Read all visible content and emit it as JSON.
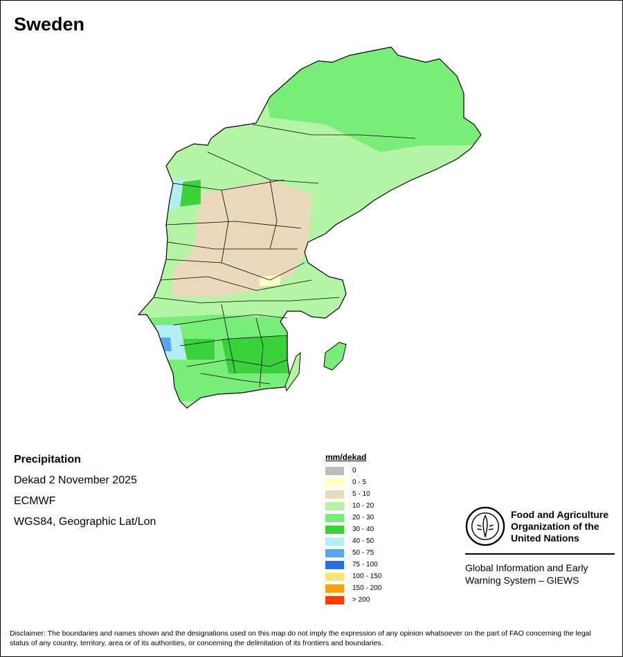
{
  "title": "Sweden",
  "info": {
    "variable": "Precipitation",
    "period": "Dekad 2 November 2025",
    "source": "ECMWF",
    "projection": "WGS84, Geographic Lat/Lon"
  },
  "legend": {
    "title": "mm/dekad",
    "classes": [
      {
        "label": "0",
        "color": "#bdbdbd"
      },
      {
        "label": "0 - 5",
        "color": "#ffffc8"
      },
      {
        "label": "5 - 10",
        "color": "#ead9bd"
      },
      {
        "label": "10 - 20",
        "color": "#b4f5a5"
      },
      {
        "label": "20 - 30",
        "color": "#78ee78"
      },
      {
        "label": "30 - 40",
        "color": "#3ad23a"
      },
      {
        "label": "40 - 50",
        "color": "#b4eef5"
      },
      {
        "label": "50 - 75",
        "color": "#5aa7ee"
      },
      {
        "label": "75 - 100",
        "color": "#2270e6"
      },
      {
        "label": "100 - 150",
        "color": "#ffe27a"
      },
      {
        "label": "150 - 200",
        "color": "#ffa000"
      },
      {
        "label": "> 200",
        "color": "#ff3a00"
      }
    ]
  },
  "fao": {
    "name_line1": "Food and Agriculture",
    "name_line2": "Organization of the",
    "name_line3": "United Nations",
    "system_line1": "Global Information and Early",
    "system_line2": "Warning System – GIEWS",
    "logo_text": "FAO"
  },
  "disclaimer": "Disclaimer: The boundaries and names shown and the designations used on this map do not imply the expression of any opinion whatsoever on the part of FAO concerning the legal status of any country, territory, area or of its authorities, or concerning the delimitation of its frontiers and boundaries."
}
